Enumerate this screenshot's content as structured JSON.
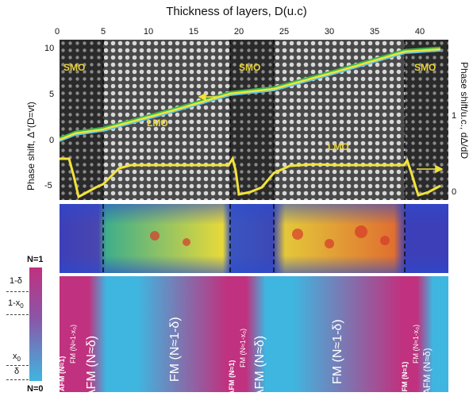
{
  "figure": {
    "x_axis_title": "Thickness of layers, D(u.c)",
    "x_ticks": [
      "0",
      "5",
      "10",
      "15",
      "20",
      "25",
      "30",
      "35",
      "40"
    ],
    "left_axis_title": "Phase shift, Δ°(D=vt)",
    "left_ticks": [
      "10",
      "5",
      "0",
      "-5"
    ],
    "right_axis_title": "Phase shift/u.c., dΔ/dD",
    "right_ticks": [
      "1",
      "0"
    ],
    "region_labels": {
      "smo1": "SMO",
      "smo2": "SMO",
      "smo3": "SMO",
      "lmo1": "LMO",
      "lmo2": "LMO"
    },
    "legend": {
      "top": "N=1",
      "bottom": "N=0",
      "l1": "1-δ",
      "l2": "1-x",
      "l2_sub": "0",
      "l3": "x",
      "l3_sub": "0",
      "l4": "δ"
    },
    "bands": [
      {
        "big": "AFM (N≈1)",
        "small": "FM (N≈1-x₀)"
      },
      {
        "big": "AFM (N≈δ)"
      },
      {
        "big": "FM (N≈1-δ)"
      },
      {
        "big": "AFM (N≈1)",
        "small": "FM (N≈1-x₀)"
      },
      {
        "big": "AFM (N≈δ)"
      },
      {
        "big": "FM (N≈1-δ)"
      },
      {
        "big": "AFM (N≈1)",
        "small": "FM (N≈1-x₀)"
      },
      {
        "big": "AFM (N≈δ)"
      }
    ]
  },
  "colors": {
    "magenta": "#c0317f",
    "cyan": "#3fb6e0",
    "yellow": "#f2e33a",
    "green": "#3db84a"
  }
}
